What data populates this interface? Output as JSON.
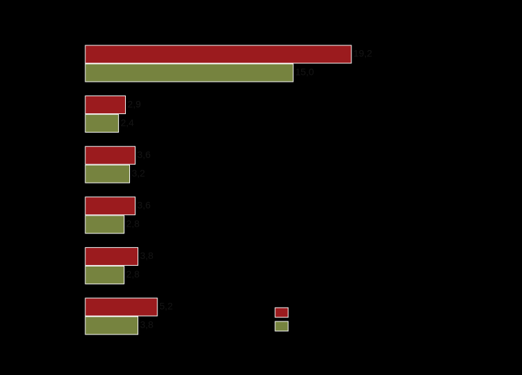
{
  "chart_data": {
    "type": "hbar",
    "categories": [
      null,
      null,
      null,
      null,
      null,
      null
    ],
    "series": [
      {
        "color": "#9b1b1e",
        "values": [
          19.2,
          2.9,
          3.6,
          3.6,
          3.8,
          5.2
        ],
        "value_labels": [
          "19,2",
          "2,9",
          "3,6",
          "3,6",
          "3,8",
          "5,2"
        ]
      },
      {
        "color": "#76833f",
        "values": [
          15.0,
          2.4,
          3.2,
          2.8,
          2.8,
          3.8
        ],
        "value_labels": [
          "15,0",
          "2,4",
          "3,2",
          "2,8",
          "2,8",
          "3,8"
        ]
      }
    ],
    "xlim": [
      0,
      20
    ]
  }
}
